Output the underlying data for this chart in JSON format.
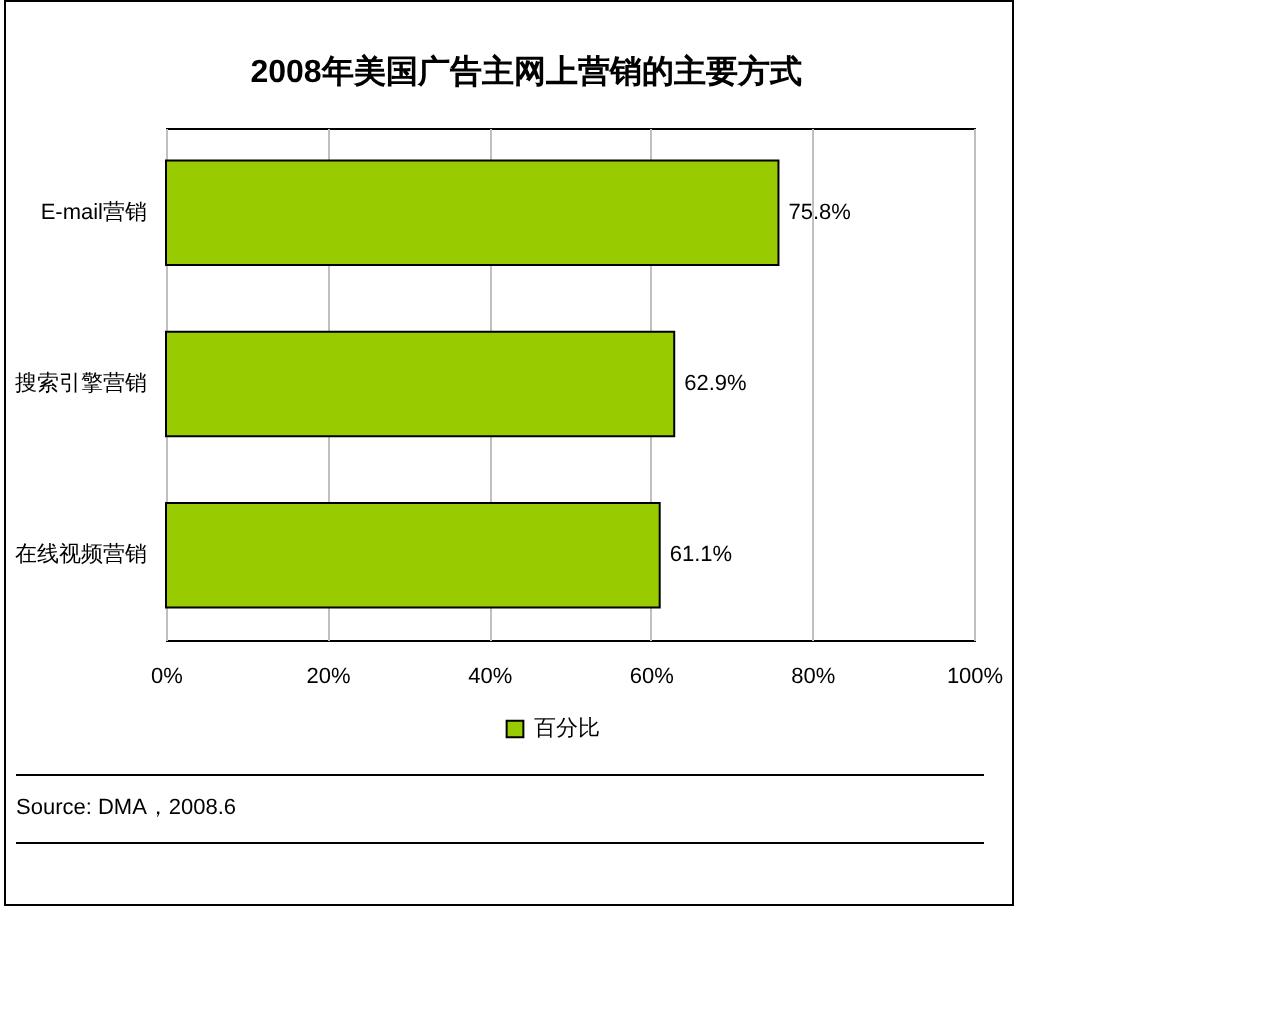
{
  "chart_data": {
    "type": "bar",
    "orientation": "horizontal",
    "title": "2008年美国广告主网上营销的主要方式",
    "categories": [
      "E-mail营销",
      "搜索引擎营销",
      "在线视频营销"
    ],
    "series": [
      {
        "name": "百分比",
        "color": "#99cc00",
        "values": [
          75.8,
          62.9,
          61.1
        ],
        "value_labels": [
          "75.8%",
          "62.9%",
          "61.1%"
        ]
      }
    ],
    "xlim": [
      0,
      100
    ],
    "xticks": [
      {
        "value": 0,
        "label": "0%"
      },
      {
        "value": 20,
        "label": "20%"
      },
      {
        "value": 40,
        "label": "40%"
      },
      {
        "value": 60,
        "label": "60%"
      },
      {
        "value": 80,
        "label": "80%"
      },
      {
        "value": 100,
        "label": "100%"
      }
    ],
    "grid": "x",
    "legend": "bottom",
    "annotations": [
      "Source: DMA，2008.6"
    ]
  }
}
